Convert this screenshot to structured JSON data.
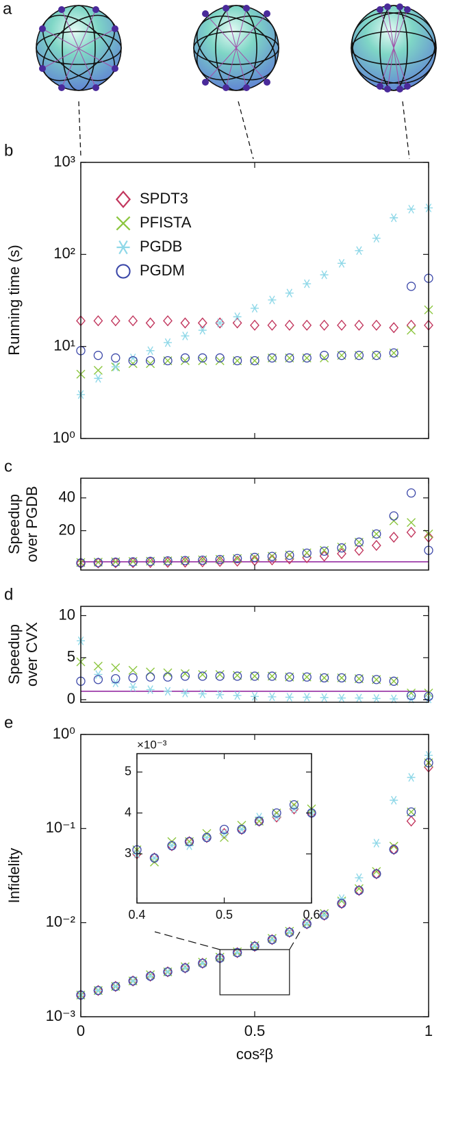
{
  "panel_a": {
    "label": "a"
  },
  "chart_data": [
    {
      "type": "scatter",
      "panel_label": "b",
      "ylabel": [
        "Running time (s)"
      ],
      "log_y": true,
      "legend": "upper left",
      "show_xtick_labels": false,
      "xlim": [
        0,
        1
      ],
      "xticks": [
        0,
        0.5,
        1
      ],
      "ylim": [
        1,
        1000
      ],
      "yticks": [
        {
          "value": 1,
          "label": "10⁰"
        },
        {
          "value": 10,
          "label": "10¹"
        },
        {
          "value": 100,
          "label": "10²"
        },
        {
          "value": 1000,
          "label": "10³"
        }
      ],
      "x": [
        0,
        0.05,
        0.1,
        0.15,
        0.2,
        0.25,
        0.3,
        0.35,
        0.4,
        0.45,
        0.5,
        0.55,
        0.6,
        0.65,
        0.7,
        0.75,
        0.8,
        0.85,
        0.9,
        0.95,
        1
      ],
      "series": [
        {
          "name": "SPDT3",
          "color": "#c2375e",
          "marker": "diamond",
          "values": [
            19,
            19,
            19,
            19,
            18,
            19,
            18,
            18,
            18,
            18,
            17,
            17,
            17,
            17,
            17,
            17,
            17,
            17,
            16,
            17,
            17
          ]
        },
        {
          "name": "PFISTA",
          "color": "#8cc63f",
          "marker": "cross",
          "values": [
            5,
            5.5,
            6,
            6.5,
            6.5,
            7,
            7,
            7,
            7,
            7,
            7,
            7.5,
            7.5,
            7.5,
            7.5,
            8,
            8,
            8,
            8.5,
            15,
            25
          ]
        },
        {
          "name": "PGDB",
          "color": "#8fd8e8",
          "marker": "star",
          "values": [
            3,
            4.5,
            6,
            7.5,
            9,
            11,
            13,
            15,
            18,
            21,
            26,
            32,
            38,
            48,
            60,
            80,
            110,
            150,
            250,
            310,
            320
          ]
        },
        {
          "name": "PGDM",
          "color": "#3b47a8",
          "marker": "circle",
          "values": [
            9,
            8,
            7.5,
            7,
            7,
            7,
            7.5,
            7.5,
            7.5,
            7,
            7,
            7.5,
            7.5,
            7.5,
            8,
            8,
            8,
            8,
            8.5,
            45,
            55
          ]
        }
      ]
    },
    {
      "type": "scatter",
      "panel_label": "c",
      "ylabel": [
        "Speedup",
        "over PGDB"
      ],
      "log_y": false,
      "show_xtick_labels": false,
      "xlim": [
        0,
        1
      ],
      "xticks": [
        0,
        0.5,
        1
      ],
      "ylim": [
        -4,
        52
      ],
      "yticks": [
        20,
        40
      ],
      "hline": 1,
      "hline_color": "#8b1a9a",
      "x": [
        0,
        0.05,
        0.1,
        0.15,
        0.2,
        0.25,
        0.3,
        0.35,
        0.4,
        0.45,
        0.5,
        0.55,
        0.6,
        0.65,
        0.7,
        0.75,
        0.8,
        0.85,
        0.9,
        0.95,
        1
      ],
      "series": [
        {
          "name": "SPDT3",
          "color": "#c2375e",
          "marker": "diamond",
          "values": [
            0.2,
            0.3,
            0.4,
            0.5,
            0.6,
            0.7,
            0.8,
            1,
            1.2,
            1.4,
            1.8,
            2.2,
            2.8,
            3.5,
            4.5,
            6,
            8,
            11,
            16,
            19,
            16
          ]
        },
        {
          "name": "PFISTA",
          "color": "#8cc63f",
          "marker": "cross",
          "values": [
            0.6,
            0.8,
            1,
            1.2,
            1.4,
            1.6,
            1.9,
            2.2,
            2.6,
            3,
            3.7,
            4.4,
            5.2,
            6.5,
            8,
            10,
            13,
            18,
            26,
            25,
            18
          ]
        },
        {
          "name": "PGDM",
          "color": "#3b47a8",
          "marker": "circle",
          "values": [
            0.3,
            0.5,
            0.8,
            1,
            1.3,
            1.6,
            1.8,
            2,
            2.4,
            3,
            3.7,
            4.3,
            5,
            6.3,
            7.5,
            9.5,
            13,
            18,
            29,
            43,
            8
          ]
        }
      ]
    },
    {
      "type": "scatter",
      "panel_label": "d",
      "ylabel": [
        "Speedup",
        "over CVX"
      ],
      "log_y": false,
      "show_xtick_labels": false,
      "xlim": [
        0,
        1
      ],
      "xticks": [
        0,
        0.5,
        1
      ],
      "ylim": [
        -0.3,
        11.1
      ],
      "yticks": [
        0,
        5,
        10
      ],
      "hline": 1,
      "hline_color": "#8b1a9a",
      "x": [
        0,
        0.05,
        0.1,
        0.15,
        0.2,
        0.25,
        0.3,
        0.35,
        0.4,
        0.45,
        0.5,
        0.55,
        0.6,
        0.65,
        0.7,
        0.75,
        0.8,
        0.85,
        0.9,
        0.95,
        1
      ],
      "series": [
        {
          "name": "PFISTA",
          "color": "#8cc63f",
          "marker": "cross",
          "values": [
            4.5,
            4,
            3.8,
            3.5,
            3.3,
            3.2,
            3.1,
            3,
            3,
            2.9,
            2.8,
            2.8,
            2.7,
            2.7,
            2.6,
            2.6,
            2.5,
            2.4,
            2.2,
            0.8,
            0.8
          ]
        },
        {
          "name": "PGDB",
          "color": "#8fd8e8",
          "marker": "star",
          "values": [
            7,
            3,
            2,
            1.5,
            1.2,
            1,
            0.8,
            0.7,
            0.6,
            0.5,
            0.4,
            0.35,
            0.3,
            0.3,
            0.25,
            0.2,
            0.2,
            0.15,
            0.1,
            0.1,
            0.1
          ]
        },
        {
          "name": "PGDM",
          "color": "#3b47a8",
          "marker": "circle",
          "values": [
            2.2,
            2.4,
            2.5,
            2.6,
            2.7,
            2.7,
            2.8,
            2.8,
            2.8,
            2.8,
            2.8,
            2.8,
            2.7,
            2.7,
            2.6,
            2.6,
            2.5,
            2.4,
            2.2,
            0.5,
            0.4
          ]
        }
      ]
    },
    {
      "type": "scatter",
      "panel_label": "e",
      "ylabel": [
        "Infidelity"
      ],
      "xlabel": "cos²β",
      "log_y": true,
      "show_xtick_labels": true,
      "xlim": [
        0,
        1
      ],
      "xticks": [
        0,
        0.5,
        1
      ],
      "ylim": [
        0.001,
        1
      ],
      "yticks": [
        {
          "value": 0.001,
          "label": "10⁻³"
        },
        {
          "value": 0.01,
          "label": "10⁻²"
        },
        {
          "value": 0.1,
          "label": "10⁻¹"
        },
        {
          "value": 1,
          "label": "10⁰"
        }
      ],
      "x": [
        0,
        0.05,
        0.1,
        0.15,
        0.2,
        0.25,
        0.3,
        0.35,
        0.4,
        0.45,
        0.5,
        0.55,
        0.6,
        0.65,
        0.7,
        0.75,
        0.8,
        0.85,
        0.9,
        0.95,
        1
      ],
      "series": [
        {
          "name": "SPDT3",
          "color": "#c2375e",
          "marker": "diamond",
          "values": [
            0.0017,
            0.0019,
            0.0021,
            0.0024,
            0.0027,
            0.003,
            0.0033,
            0.0037,
            0.0042,
            0.0048,
            0.0056,
            0.0066,
            0.0079,
            0.0097,
            0.012,
            0.016,
            0.022,
            0.033,
            0.06,
            0.12,
            0.45
          ]
        },
        {
          "name": "PFISTA",
          "color": "#8cc63f",
          "marker": "cross",
          "values": [
            0.0017,
            0.0019,
            0.0021,
            0.0024,
            0.0028,
            0.003,
            0.0034,
            0.0038,
            0.0043,
            0.0049,
            0.0057,
            0.0068,
            0.0081,
            0.0099,
            0.0125,
            0.017,
            0.023,
            0.035,
            0.065,
            0.15,
            0.5
          ]
        },
        {
          "name": "PGDB",
          "color": "#8fd8e8",
          "marker": "star",
          "values": [
            0.0017,
            0.0019,
            0.0021,
            0.0024,
            0.0027,
            0.003,
            0.0033,
            0.0037,
            0.0042,
            0.0048,
            0.0056,
            0.0066,
            0.0079,
            0.0097,
            0.012,
            0.018,
            0.03,
            0.07,
            0.2,
            0.35,
            0.6
          ]
        },
        {
          "name": "PGDM",
          "color": "#3b47a8",
          "marker": "circle",
          "values": [
            0.0017,
            0.0019,
            0.0021,
            0.0024,
            0.0027,
            0.003,
            0.0033,
            0.0037,
            0.0042,
            0.0048,
            0.0056,
            0.0066,
            0.0079,
            0.0097,
            0.012,
            0.016,
            0.022,
            0.033,
            0.06,
            0.15,
            0.5
          ]
        }
      ]
    },
    {
      "type": "scatter",
      "y_multiplier_label": "×10⁻³",
      "log_y": false,
      "show_xtick_labels": true,
      "xlim": [
        0.4,
        0.6
      ],
      "xticks": [
        0.4,
        0.5,
        0.6
      ],
      "ylim": [
        1.8,
        5.45
      ],
      "yticks": [
        3,
        4,
        5
      ],
      "x": [
        0.4,
        0.42,
        0.44,
        0.46,
        0.48,
        0.5,
        0.52,
        0.54,
        0.56,
        0.58,
        0.6
      ],
      "series": [
        {
          "name": "SPDT3",
          "color": "#c2375e",
          "marker": "diamond",
          "values": [
            3.0,
            2.9,
            3.2,
            3.3,
            3.4,
            3.5,
            3.6,
            3.8,
            3.9,
            4.1,
            4.0
          ]
        },
        {
          "name": "PFISTA",
          "color": "#8cc63f",
          "marker": "cross",
          "values": [
            3.1,
            2.8,
            3.3,
            3.3,
            3.5,
            3.4,
            3.7,
            3.8,
            4.0,
            4.2,
            4.1
          ]
        },
        {
          "name": "PGDB",
          "color": "#8fd8e8",
          "marker": "star",
          "values": [
            3.0,
            2.9,
            3.2,
            3.2,
            3.4,
            3.5,
            3.6,
            3.9,
            3.9,
            4.1,
            4.0
          ]
        },
        {
          "name": "PGDM",
          "color": "#3b47a8",
          "marker": "circle",
          "values": [
            3.1,
            2.9,
            3.2,
            3.3,
            3.4,
            3.6,
            3.6,
            3.8,
            4.0,
            4.2,
            4.0
          ]
        }
      ]
    }
  ]
}
